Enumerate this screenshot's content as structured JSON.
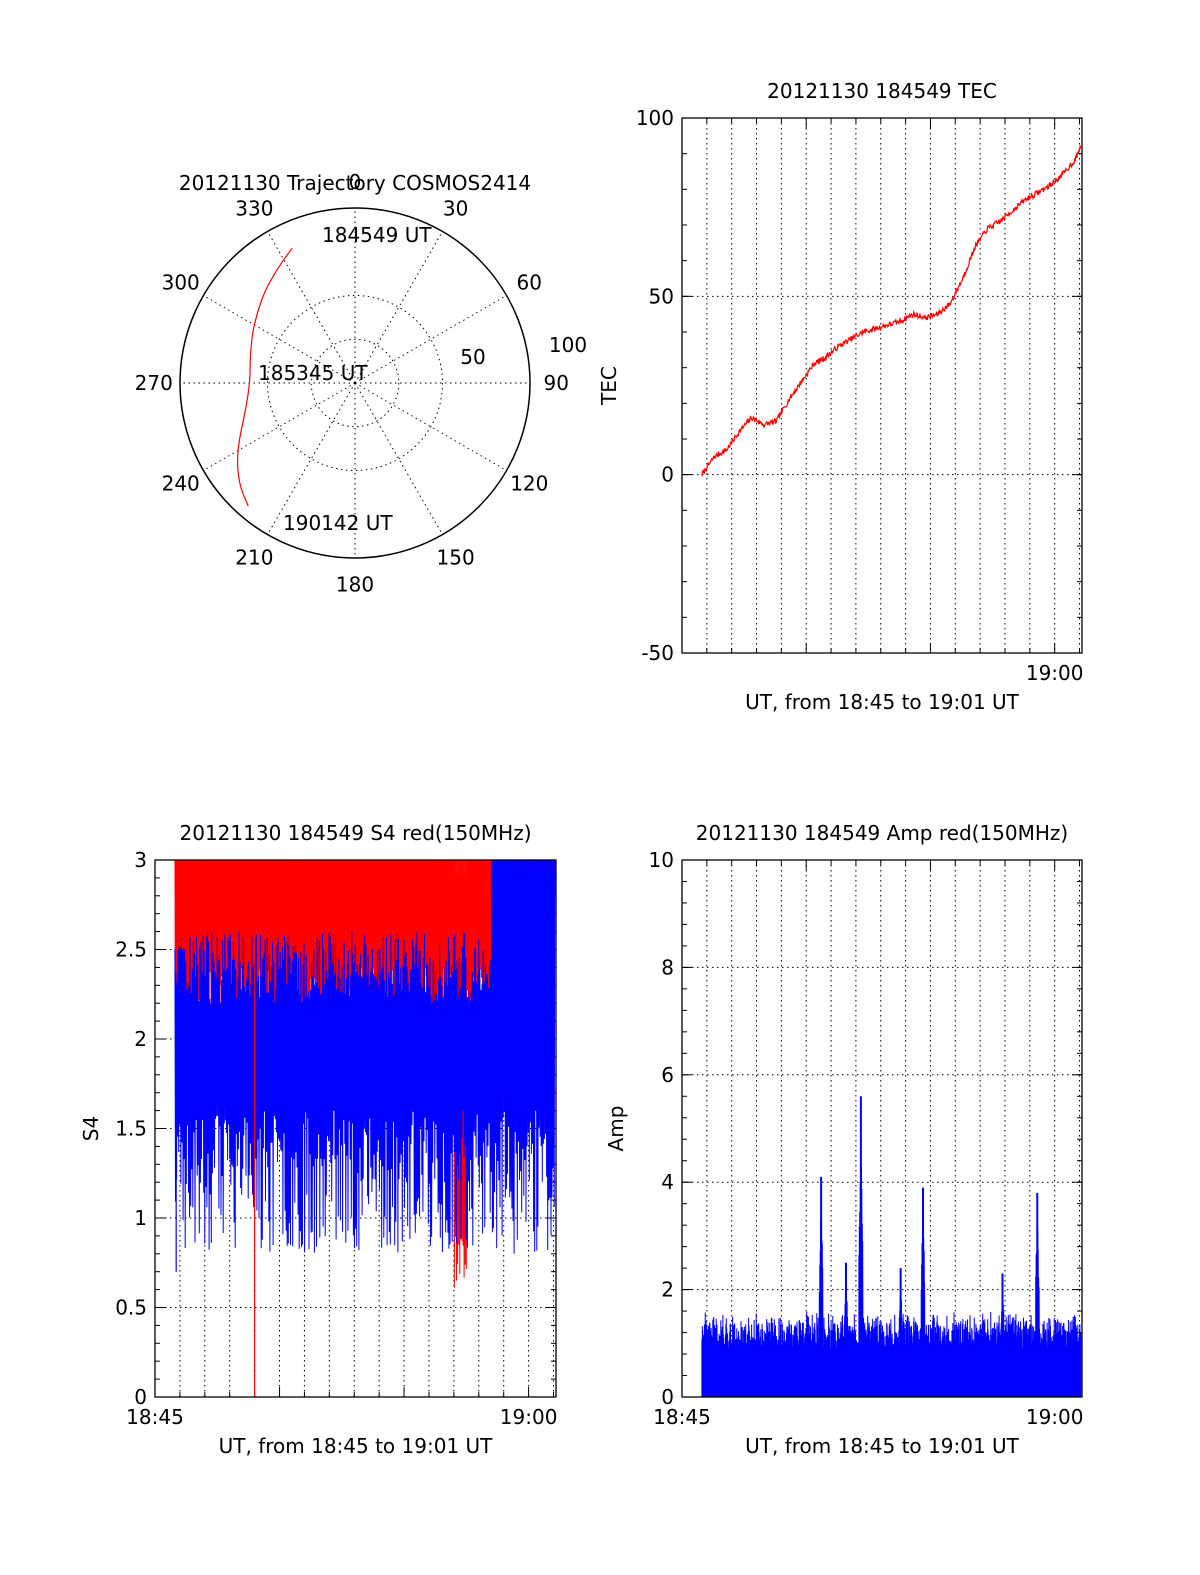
{
  "chart_data": [
    {
      "type": "polar",
      "title": "20121130 Trajectory COSMOS2414",
      "angle_labels": [
        "0",
        "30",
        "60",
        "90",
        "120",
        "150",
        "180",
        "210",
        "240",
        "270",
        "300",
        "330"
      ],
      "radial_labels": [
        "50",
        "100"
      ],
      "series": [
        {
          "color": "#ff0000",
          "points": [
            {
              "az": 335,
              "r": 85
            },
            {
              "az": 320,
              "r": 77
            },
            {
              "az": 300,
              "r": 67
            },
            {
              "az": 285,
              "r": 62
            },
            {
              "az": 270,
              "r": 60
            },
            {
              "az": 255,
              "r": 65
            },
            {
              "az": 240,
              "r": 78
            },
            {
              "az": 229,
              "r": 88
            },
            {
              "az": 221,
              "r": 93
            }
          ]
        }
      ],
      "annotations": [
        {
          "text": "184549 UT",
          "az": 335,
          "r": 85
        },
        {
          "text": "185345 UT",
          "az": 0,
          "r": 0
        },
        {
          "text": "190142 UT",
          "az": 221,
          "r": 93
        }
      ]
    },
    {
      "type": "line",
      "title": "20121130 184549 TEC",
      "xlabel": "UT, from 18:45 to 19:01 UT",
      "ylabel": "TEC",
      "xlim": [
        0,
        16.1
      ],
      "ylim": [
        -50,
        100
      ],
      "yticks": [
        "100",
        "50",
        "0",
        "-50"
      ],
      "xticks": [
        {
          "label": "19:00",
          "value": 15
        }
      ],
      "grid": true,
      "series": [
        {
          "color": "#ff0000",
          "x": [
            0.8,
            1.3,
            1.8,
            2.3,
            2.8,
            3.3,
            3.8,
            4.3,
            4.8,
            5.3,
            5.8,
            6.3,
            6.8,
            7.3,
            7.8,
            8.3,
            8.8,
            9.3,
            9.8,
            10.3,
            10.8,
            11.3,
            11.8,
            12.3,
            12.8,
            13.3,
            13.8,
            14.3,
            14.8,
            15.3,
            15.8,
            16.05
          ],
          "y": [
            0,
            5,
            7,
            12,
            16,
            14,
            15,
            21,
            26,
            31,
            33,
            36,
            38,
            40,
            41,
            42,
            43,
            45,
            44,
            45,
            48,
            55,
            64,
            69,
            71,
            74,
            77,
            79,
            81,
            84,
            88,
            92
          ]
        }
      ]
    },
    {
      "type": "line",
      "title": "20121130 184549 S4 red(150MHz)",
      "xlabel": "UT, from 18:45 to 19:01 UT",
      "ylabel": "S4",
      "xlim": [
        0,
        16.1
      ],
      "ylim": [
        0,
        3
      ],
      "yticks": [
        "3",
        "2.5",
        "2",
        "1.5",
        "1",
        "0.5",
        "0"
      ],
      "xticks": [
        {
          "label": "18:45",
          "value": 0
        },
        {
          "label": "19:00",
          "value": 15
        }
      ],
      "grid": true,
      "series": [
        {
          "color": "#ff0000",
          "x_range": [
            0.8,
            16.05
          ],
          "low_range": [
            1.6,
            2.4
          ],
          "high": 3
        },
        {
          "color": "#0000ff",
          "x_range": [
            0.8,
            16.05
          ],
          "low_range": [
            0.8,
            1.6
          ],
          "high": 2.6
        }
      ]
    },
    {
      "type": "bar",
      "title": "20121130 184549 Amp red(150MHz)",
      "xlabel": "UT, from 18:45 to 19:01 UT",
      "ylabel": "Amp",
      "xlim": [
        0,
        16.1
      ],
      "ylim": [
        0,
        10
      ],
      "yticks": [
        "10",
        "8",
        "6",
        "4",
        "2",
        "0"
      ],
      "xticks": [
        {
          "label": "18:45",
          "value": 0
        },
        {
          "label": "19:00",
          "value": 15
        }
      ],
      "grid": true,
      "series": [
        {
          "color": "#0000ff",
          "x_range": [
            0.8,
            16.05
          ],
          "baseline_range": [
            0.9,
            1.6
          ],
          "peaks": [
            {
              "x": 5.6,
              "y": 4.1
            },
            {
              "x": 6.6,
              "y": 2.5
            },
            {
              "x": 7.2,
              "y": 5.6
            },
            {
              "x": 8.8,
              "y": 2.4
            },
            {
              "x": 9.7,
              "y": 3.9
            },
            {
              "x": 12.9,
              "y": 2.3
            },
            {
              "x": 14.3,
              "y": 3.8
            }
          ]
        }
      ]
    }
  ]
}
